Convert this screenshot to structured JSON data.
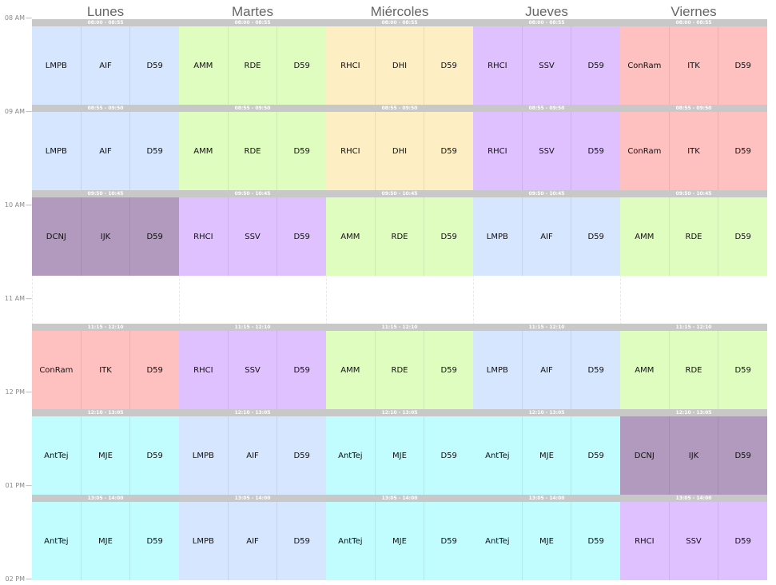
{
  "days": [
    "Lunes",
    "Martes",
    "Miércoles",
    "Jueves",
    "Viernes"
  ],
  "hours": [
    "08 AM",
    "09 AM",
    "10 AM",
    "11 AM",
    "12 PM",
    "01 PM",
    "02 PM"
  ],
  "colors": {
    "blue": "#d6e6ff",
    "green": "#e0fdc0",
    "orange": "#fdefc3",
    "purple": "#e0c1ff",
    "red": "#ffc0c0",
    "darkpurple": "#b29abf",
    "cyan": "#c1fdff"
  },
  "blocks": [
    {
      "time": "08:00 - 08:55",
      "days": [
        {
          "color": "blue",
          "items": [
            "LMPB",
            "AIF",
            "D59"
          ]
        },
        {
          "color": "green",
          "items": [
            "AMM",
            "RDE",
            "D59"
          ]
        },
        {
          "color": "orange",
          "items": [
            "RHCI",
            "DHI",
            "D59"
          ]
        },
        {
          "color": "purple",
          "items": [
            "RHCI",
            "SSV",
            "D59"
          ]
        },
        {
          "color": "red",
          "items": [
            "ConRam",
            "ITK",
            "D59"
          ]
        }
      ]
    },
    {
      "time": "08:55 - 09:50",
      "days": [
        {
          "color": "blue",
          "items": [
            "LMPB",
            "AIF",
            "D59"
          ]
        },
        {
          "color": "green",
          "items": [
            "AMM",
            "RDE",
            "D59"
          ]
        },
        {
          "color": "orange",
          "items": [
            "RHCI",
            "DHI",
            "D59"
          ]
        },
        {
          "color": "purple",
          "items": [
            "RHCI",
            "SSV",
            "D59"
          ]
        },
        {
          "color": "red",
          "items": [
            "ConRam",
            "ITK",
            "D59"
          ]
        }
      ]
    },
    {
      "time": "09:50 - 10:45",
      "days": [
        {
          "color": "darkpurple",
          "items": [
            "DCNJ",
            "IJK",
            "D59"
          ]
        },
        {
          "color": "purple",
          "items": [
            "RHCI",
            "SSV",
            "D59"
          ]
        },
        {
          "color": "green",
          "items": [
            "AMM",
            "RDE",
            "D59"
          ]
        },
        {
          "color": "blue",
          "items": [
            "LMPB",
            "AIF",
            "D59"
          ]
        },
        {
          "color": "green",
          "items": [
            "AMM",
            "RDE",
            "D59"
          ]
        }
      ]
    },
    {
      "time": "11:15 - 12:10",
      "days": [
        {
          "color": "red",
          "items": [
            "ConRam",
            "ITK",
            "D59"
          ]
        },
        {
          "color": "purple",
          "items": [
            "RHCI",
            "SSV",
            "D59"
          ]
        },
        {
          "color": "green",
          "items": [
            "AMM",
            "RDE",
            "D59"
          ]
        },
        {
          "color": "blue",
          "items": [
            "LMPB",
            "AIF",
            "D59"
          ]
        },
        {
          "color": "green",
          "items": [
            "AMM",
            "RDE",
            "D59"
          ]
        }
      ]
    },
    {
      "time": "12:10 - 13:05",
      "days": [
        {
          "color": "cyan",
          "items": [
            "AntTej",
            "MJE",
            "D59"
          ]
        },
        {
          "color": "blue",
          "items": [
            "LMPB",
            "AIF",
            "D59"
          ]
        },
        {
          "color": "cyan",
          "items": [
            "AntTej",
            "MJE",
            "D59"
          ]
        },
        {
          "color": "cyan",
          "items": [
            "AntTej",
            "MJE",
            "D59"
          ]
        },
        {
          "color": "darkpurple",
          "items": [
            "DCNJ",
            "IJK",
            "D59"
          ]
        }
      ]
    },
    {
      "time": "13:05 - 14:00",
      "days": [
        {
          "color": "cyan",
          "items": [
            "AntTej",
            "MJE",
            "D59"
          ]
        },
        {
          "color": "blue",
          "items": [
            "LMPB",
            "AIF",
            "D59"
          ]
        },
        {
          "color": "cyan",
          "items": [
            "AntTej",
            "MJE",
            "D59"
          ]
        },
        {
          "color": "cyan",
          "items": [
            "AntTej",
            "MJE",
            "D59"
          ]
        },
        {
          "color": "purple",
          "items": [
            "RHCI",
            "SSV",
            "D59"
          ]
        }
      ]
    }
  ]
}
